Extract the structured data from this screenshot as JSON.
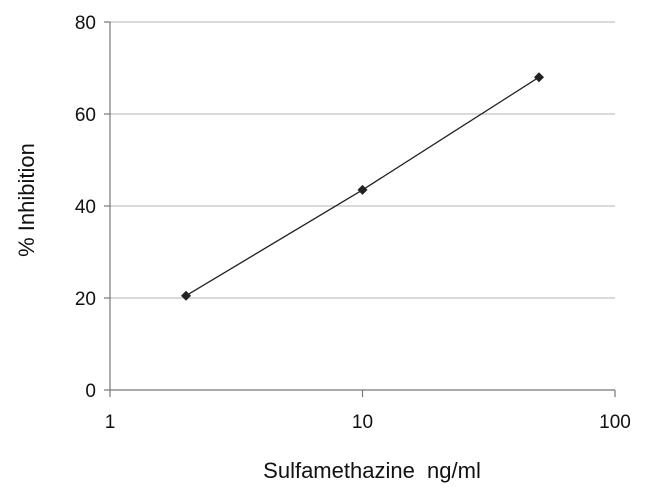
{
  "chart_data": {
    "type": "line",
    "title": "",
    "xlabel": "Sulfamethazine  ng/ml",
    "ylabel": "% Inhibition",
    "x_scale": "log",
    "xlim": [
      1,
      100
    ],
    "ylim": [
      0,
      80
    ],
    "x_ticks": [
      1,
      10,
      100
    ],
    "x_tick_labels": [
      "1",
      "10",
      "100"
    ],
    "y_ticks": [
      0,
      20,
      40,
      60,
      80
    ],
    "y_tick_labels": [
      "0",
      "20",
      "40",
      "60",
      "80"
    ],
    "grid": "horizontal",
    "legend": "none",
    "series": [
      {
        "x": [
          2,
          10,
          50
        ],
        "y": [
          20.5,
          43.5,
          68
        ],
        "marker": "diamond",
        "color": "#222222"
      }
    ]
  }
}
